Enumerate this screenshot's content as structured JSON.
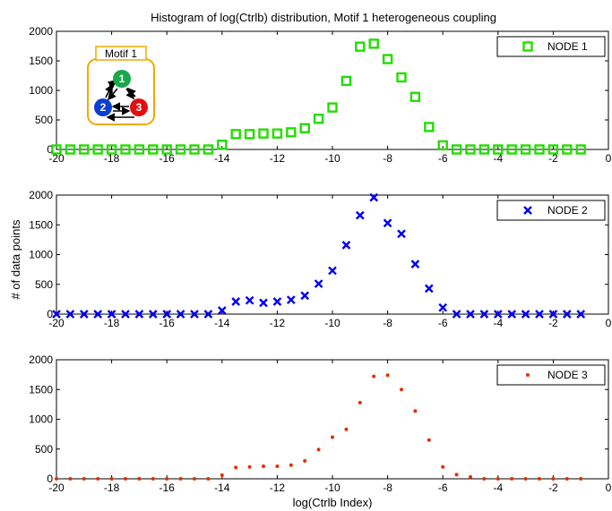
{
  "figure": {
    "title": "Histogram of log(Ctrlb) distribution, Motif 1 heterogeneous coupling",
    "xlabel": "log(Ctrlb Index)",
    "ylabel": "# of data points"
  },
  "inset": {
    "title": "Motif 1",
    "nodes": [
      {
        "label": "1",
        "color": "#1aa84a"
      },
      {
        "label": "2",
        "color": "#0b3fd0"
      },
      {
        "label": "3",
        "color": "#e01010"
      }
    ],
    "border_color": "#f2a900"
  },
  "chart_data": [
    {
      "type": "scatter",
      "series": [
        {
          "name": "NODE 1",
          "marker": "square",
          "color": "#22dd00",
          "x": [
            -20,
            -19.5,
            -19,
            -18.5,
            -18,
            -17.5,
            -17,
            -16.5,
            -16,
            -15.5,
            -15,
            -14.5,
            -14,
            -13.5,
            -13,
            -12.5,
            -12,
            -11.5,
            -11,
            -10.5,
            -10,
            -9.5,
            -9,
            -8.5,
            -8,
            -7.5,
            -7,
            -6.5,
            -6,
            -5.5,
            -5,
            -4.5,
            -4,
            -3.5,
            -3,
            -2.5,
            -2,
            -1.5,
            -1
          ],
          "y": [
            0,
            0,
            0,
            0,
            0,
            0,
            0,
            0,
            0,
            0,
            0,
            0,
            80,
            260,
            260,
            270,
            270,
            290,
            360,
            520,
            710,
            1160,
            1740,
            1790,
            1530,
            1220,
            890,
            380,
            70,
            0,
            0,
            0,
            0,
            0,
            0,
            0,
            0,
            0,
            0
          ]
        }
      ],
      "xlim": [
        -20,
        0
      ],
      "ylim": [
        0,
        2000
      ],
      "xticks": [
        -20,
        -18,
        -16,
        -14,
        -12,
        -10,
        -8,
        -6,
        -4,
        -2,
        0
      ],
      "yticks": [
        0,
        500,
        1000,
        1500,
        2000
      ],
      "legend": "top-right"
    },
    {
      "type": "scatter",
      "series": [
        {
          "name": "NODE 2",
          "marker": "x",
          "color": "#0000ee",
          "x": [
            -20,
            -19.5,
            -19,
            -18.5,
            -18,
            -17.5,
            -17,
            -16.5,
            -16,
            -15.5,
            -15,
            -14.5,
            -14,
            -13.5,
            -13,
            -12.5,
            -12,
            -11.5,
            -11,
            -10.5,
            -10,
            -9.5,
            -9,
            -8.5,
            -8,
            -7.5,
            -7,
            -6.5,
            -6,
            -5.5,
            -5,
            -4.5,
            -4,
            -3.5,
            -3,
            -2.5,
            -2,
            -1.5,
            -1
          ],
          "y": [
            0,
            0,
            0,
            0,
            0,
            0,
            0,
            0,
            0,
            0,
            0,
            0,
            60,
            210,
            230,
            190,
            210,
            240,
            310,
            510,
            730,
            1160,
            1660,
            1960,
            1530,
            1350,
            840,
            430,
            110,
            0,
            0,
            0,
            0,
            0,
            0,
            0,
            0,
            0,
            0
          ]
        }
      ],
      "xlim": [
        -20,
        0
      ],
      "ylim": [
        0,
        2000
      ],
      "xticks": [
        -20,
        -18,
        -16,
        -14,
        -12,
        -10,
        -8,
        -6,
        -4,
        -2,
        0
      ],
      "yticks": [
        0,
        500,
        1000,
        1500,
        2000
      ],
      "legend": "top-right"
    },
    {
      "type": "scatter",
      "series": [
        {
          "name": "NODE 3",
          "marker": "dot",
          "color": "#e03000",
          "x": [
            -20,
            -19.5,
            -19,
            -18.5,
            -18,
            -17.5,
            -17,
            -16.5,
            -16,
            -15.5,
            -15,
            -14.5,
            -14,
            -13.5,
            -13,
            -12.5,
            -12,
            -11.5,
            -11,
            -10.5,
            -10,
            -9.5,
            -9,
            -8.5,
            -8,
            -7.5,
            -7,
            -6.5,
            -6,
            -5.5,
            -5,
            -4.5,
            -4,
            -3.5,
            -3,
            -2.5,
            -2,
            -1.5,
            -1
          ],
          "y": [
            0,
            0,
            0,
            0,
            0,
            0,
            0,
            0,
            0,
            0,
            0,
            0,
            60,
            190,
            200,
            210,
            210,
            230,
            300,
            490,
            700,
            830,
            1280,
            1720,
            1740,
            1500,
            1140,
            650,
            200,
            70,
            30,
            0,
            0,
            0,
            0,
            0,
            0,
            0,
            0
          ]
        }
      ],
      "xlim": [
        -20,
        0
      ],
      "ylim": [
        0,
        2000
      ],
      "xticks": [
        -20,
        -18,
        -16,
        -14,
        -12,
        -10,
        -8,
        -6,
        -4,
        -2,
        0
      ],
      "yticks": [
        0,
        500,
        1000,
        1500,
        2000
      ],
      "legend": "top-right"
    }
  ]
}
